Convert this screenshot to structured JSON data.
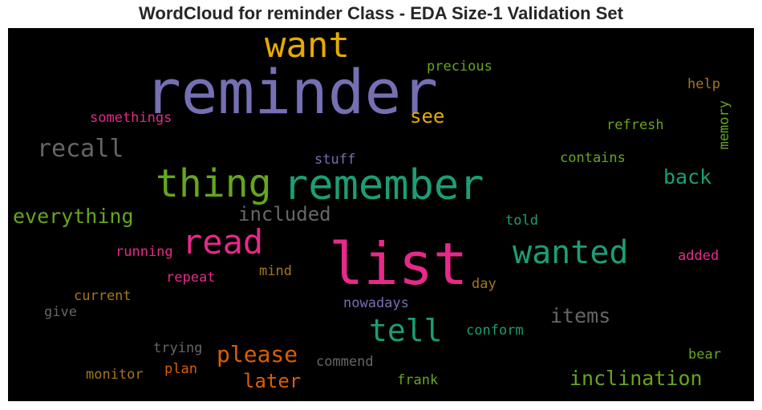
{
  "chart_data": {
    "type": "wordcloud",
    "title": "WordCloud for reminder Class - EDA Size-1 Validation Set",
    "background": "#000000",
    "words": [
      {
        "text": "reminder",
        "color": "#7570b3",
        "weight": 1.0
      },
      {
        "text": "list",
        "color": "#e7298a",
        "weight": 0.98
      },
      {
        "text": "remember",
        "color": "#1b9e77",
        "weight": 0.72
      },
      {
        "text": "thing",
        "color": "#66a61e",
        "weight": 0.66
      },
      {
        "text": "want",
        "color": "#e6ab02",
        "weight": 0.62
      },
      {
        "text": "read",
        "color": "#e7298a",
        "weight": 0.6
      },
      {
        "text": "wanted",
        "color": "#1b9e77",
        "weight": 0.58
      },
      {
        "text": "tell",
        "color": "#1b9e77",
        "weight": 0.56
      },
      {
        "text": "recall",
        "color": "#666666",
        "weight": 0.46
      },
      {
        "text": "please",
        "color": "#d95f02",
        "weight": 0.42
      },
      {
        "text": "everything",
        "color": "#66a61e",
        "weight": 0.38
      },
      {
        "text": "inclination",
        "color": "#66a61e",
        "weight": 0.38
      },
      {
        "text": "items",
        "color": "#666666",
        "weight": 0.37
      },
      {
        "text": "back",
        "color": "#1b9e77",
        "weight": 0.37
      },
      {
        "text": "included",
        "color": "#666666",
        "weight": 0.36
      },
      {
        "text": "later",
        "color": "#d95f02",
        "weight": 0.36
      },
      {
        "text": "see",
        "color": "#e6ab02",
        "weight": 0.35
      },
      {
        "text": "precious",
        "color": "#66a61e",
        "weight": 0.25
      },
      {
        "text": "somethings",
        "color": "#e7298a",
        "weight": 0.25
      },
      {
        "text": "help",
        "color": "#a6761d",
        "weight": 0.25
      },
      {
        "text": "refresh",
        "color": "#66a61e",
        "weight": 0.25
      },
      {
        "text": "memory",
        "color": "#66a61e",
        "weight": 0.25
      },
      {
        "text": "contains",
        "color": "#66a61e",
        "weight": 0.25
      },
      {
        "text": "stuff",
        "color": "#7570b3",
        "weight": 0.25
      },
      {
        "text": "told",
        "color": "#1b9e77",
        "weight": 0.25
      },
      {
        "text": "running",
        "color": "#e7298a",
        "weight": 0.25
      },
      {
        "text": "added",
        "color": "#e7298a",
        "weight": 0.25
      },
      {
        "text": "mind",
        "color": "#a6761d",
        "weight": 0.25
      },
      {
        "text": "repeat",
        "color": "#e7298a",
        "weight": 0.25
      },
      {
        "text": "day",
        "color": "#a6761d",
        "weight": 0.25
      },
      {
        "text": "current",
        "color": "#a6761d",
        "weight": 0.25
      },
      {
        "text": "nowadays",
        "color": "#7570b3",
        "weight": 0.25
      },
      {
        "text": "give",
        "color": "#666666",
        "weight": 0.25
      },
      {
        "text": "conform",
        "color": "#1b9e77",
        "weight": 0.25
      },
      {
        "text": "trying",
        "color": "#666666",
        "weight": 0.25
      },
      {
        "text": "commend",
        "color": "#666666",
        "weight": 0.25
      },
      {
        "text": "bear",
        "color": "#66a61e",
        "weight": 0.25
      },
      {
        "text": "monitor",
        "color": "#a6761d",
        "weight": 0.25
      },
      {
        "text": "plan",
        "color": "#d95f02",
        "weight": 0.25
      },
      {
        "text": "frank",
        "color": "#66a61e",
        "weight": 0.25
      }
    ]
  }
}
